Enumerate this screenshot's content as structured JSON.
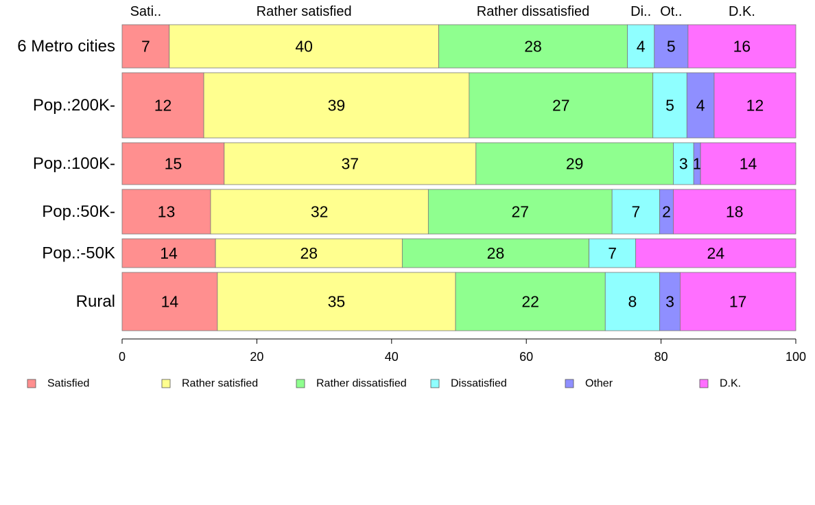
{
  "chart_data": {
    "type": "bar",
    "orientation": "horizontal",
    "stacked": true,
    "variable_width": true,
    "categories": [
      "6 Metro cities",
      "Pop.:200K-",
      "Pop.:100K-",
      "Pop.:50K-",
      "Pop.:-50K",
      "Rural"
    ],
    "series": [
      {
        "name": "Satisfied",
        "color": "#ff8f8f",
        "values": [
          7,
          12,
          15,
          13,
          14,
          14
        ]
      },
      {
        "name": "Rather satisfied",
        "color": "#ffff8f",
        "values": [
          40,
          39,
          37,
          32,
          28,
          35
        ]
      },
      {
        "name": "Rather dissatisfied",
        "color": "#8fff8f",
        "values": [
          28,
          27,
          29,
          27,
          28,
          22
        ]
      },
      {
        "name": "Dissatisfied",
        "color": "#8fffff",
        "values": [
          4,
          5,
          3,
          7,
          7,
          8
        ]
      },
      {
        "name": "Other",
        "color": "#8f8fff",
        "values": [
          5,
          4,
          1,
          2,
          0,
          3
        ]
      },
      {
        "name": "D.K.",
        "color": "#ff6fff",
        "values": [
          16,
          12,
          14,
          18,
          24,
          17
        ]
      }
    ],
    "header_labels": [
      "Sati..",
      "Rather satisfied",
      "Rather dissatisfied",
      "Di..",
      "Ot..",
      "D.K."
    ],
    "xlim": [
      0,
      100
    ],
    "xticks": [
      0,
      20,
      40,
      60,
      80,
      100
    ],
    "legend_position": "bottom",
    "grid": false
  }
}
